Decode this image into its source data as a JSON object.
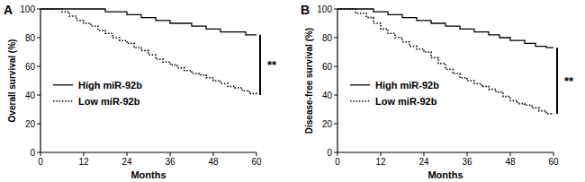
{
  "chart_data": [
    {
      "type": "line",
      "title": "A",
      "x_label": "Months",
      "y_label": "Overall survival (%)",
      "xlim": [
        0,
        60
      ],
      "xticks": [
        0,
        12,
        24,
        36,
        48,
        60
      ],
      "ylim": [
        0,
        100
      ],
      "yticks": [
        0,
        20,
        40,
        60,
        80,
        100
      ],
      "legend": "left",
      "annotation": "**",
      "series": [
        {
          "name": "High miR-92b",
          "color": "#000000",
          "line_style": "solid",
          "x": [
            0,
            18,
            24,
            28,
            32,
            36,
            42,
            46,
            50,
            57,
            60
          ],
          "values": [
            100,
            98,
            96,
            94,
            92,
            90,
            88,
            86,
            84,
            82,
            82
          ]
        },
        {
          "name": "Low miR-92b",
          "color": "#000000",
          "line_style": "dotted",
          "x": [
            0,
            6,
            8,
            10,
            12,
            14,
            16,
            18,
            20,
            22,
            24,
            26,
            28,
            30,
            32,
            34,
            36,
            38,
            40,
            42,
            44,
            46,
            48,
            50,
            52,
            54,
            56,
            58,
            60
          ],
          "values": [
            100,
            98,
            95,
            92,
            90,
            88,
            85,
            83,
            80,
            78,
            76,
            73,
            71,
            68,
            65,
            63,
            61,
            59,
            57,
            55,
            54,
            52,
            50,
            48,
            46,
            45,
            43,
            41,
            40
          ]
        }
      ]
    },
    {
      "type": "line",
      "title": "B",
      "x_label": "Months",
      "y_label": "Disease-free survival (%)",
      "xlim": [
        0,
        60
      ],
      "xticks": [
        0,
        12,
        24,
        36,
        48,
        60
      ],
      "ylim": [
        0,
        100
      ],
      "yticks": [
        0,
        20,
        40,
        60,
        80,
        100
      ],
      "legend": "left",
      "annotation": "**",
      "series": [
        {
          "name": "High miR-92b",
          "color": "#000000",
          "line_style": "solid",
          "x": [
            0,
            10,
            14,
            18,
            22,
            26,
            30,
            34,
            38,
            42,
            45,
            48,
            52,
            55,
            58,
            60
          ],
          "values": [
            100,
            98,
            96,
            94,
            92,
            90,
            88,
            86,
            84,
            82,
            80,
            78,
            76,
            74,
            73,
            73
          ]
        },
        {
          "name": "Low miR-92b",
          "color": "#000000",
          "line_style": "dotted",
          "x": [
            0,
            5,
            8,
            10,
            12,
            14,
            16,
            18,
            20,
            22,
            24,
            26,
            28,
            30,
            32,
            34,
            36,
            38,
            40,
            42,
            44,
            46,
            48,
            50,
            52,
            54,
            56,
            58,
            60
          ],
          "values": [
            100,
            97,
            94,
            90,
            86,
            83,
            80,
            77,
            74,
            72,
            70,
            66,
            62,
            58,
            55,
            52,
            50,
            48,
            46,
            44,
            42,
            39,
            36,
            34,
            33,
            31,
            29,
            27,
            27
          ]
        }
      ]
    }
  ]
}
